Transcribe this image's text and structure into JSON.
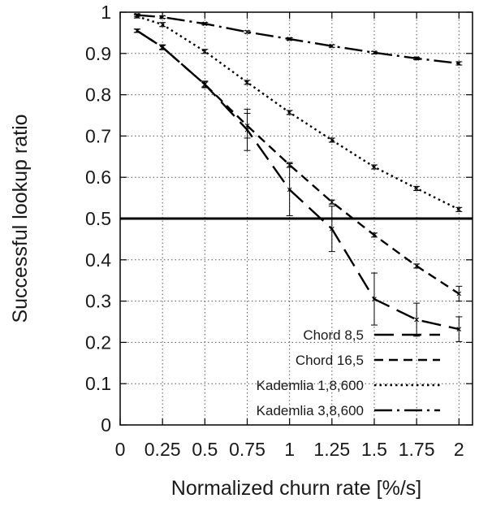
{
  "chart_data": {
    "type": "line",
    "title": "",
    "xlabel": "Normalized churn rate [%/s]",
    "ylabel": "Successful lookup ratio",
    "xlim": [
      0,
      2.08
    ],
    "ylim": [
      0,
      1
    ],
    "x_ticks": [
      "0",
      "0.25",
      "0.5",
      "0.75",
      "1",
      "1.25",
      "1.5",
      "1.75",
      "2"
    ],
    "y_ticks": [
      "0",
      "0.1",
      "0.2",
      "0.3",
      "0.4",
      "0.5",
      "0.6",
      "0.7",
      "0.8",
      "0.9",
      "1"
    ],
    "grid": true,
    "legend_position": "bottom-right",
    "reference_line": {
      "y": 0.5
    },
    "series": [
      {
        "name": "Chord 8,5",
        "dash": "long-dash",
        "color": "#000000",
        "x": [
          0.1,
          0.25,
          0.5,
          0.75,
          1,
          1.25,
          1.5,
          1.75,
          2
        ],
        "y": [
          0.955,
          0.915,
          0.825,
          0.715,
          0.57,
          0.475,
          0.305,
          0.255,
          0.232
        ],
        "err": [
          0.004,
          0.006,
          0.008,
          0.05,
          0.063,
          0.055,
          0.063,
          0.04,
          0.03
        ]
      },
      {
        "name": "Chord 16,5",
        "dash": "short-dash",
        "color": "#000000",
        "x": [
          0.1,
          0.25,
          0.5,
          0.75,
          1,
          1.25,
          1.5,
          1.75,
          2
        ],
        "y": [
          0.955,
          0.915,
          0.825,
          0.725,
          0.63,
          0.54,
          0.46,
          0.385,
          0.318
        ],
        "err": [
          0.004,
          0.005,
          0.006,
          0.03,
          0.006,
          0.005,
          0.005,
          0.005,
          0.018
        ]
      },
      {
        "name": "Kademlia 1,8,600",
        "dash": "dotted",
        "color": "#000000",
        "x": [
          0.1,
          0.25,
          0.5,
          0.75,
          1,
          1.25,
          1.5,
          1.75,
          2
        ],
        "y": [
          0.99,
          0.97,
          0.905,
          0.83,
          0.757,
          0.69,
          0.625,
          0.573,
          0.522
        ],
        "err": [
          0.004,
          0.005,
          0.005,
          0.005,
          0.005,
          0.005,
          0.005,
          0.005,
          0.005
        ]
      },
      {
        "name": "Kademlia 3,8,600",
        "dash": "dash-dot",
        "color": "#000000",
        "x": [
          0.1,
          0.25,
          0.5,
          0.75,
          1,
          1.25,
          1.5,
          1.75,
          2
        ],
        "y": [
          0.993,
          0.988,
          0.972,
          0.952,
          0.935,
          0.918,
          0.902,
          0.888,
          0.876
        ],
        "err": [
          0.003,
          0.003,
          0.003,
          0.003,
          0.003,
          0.003,
          0.003,
          0.003,
          0.004
        ]
      }
    ]
  }
}
